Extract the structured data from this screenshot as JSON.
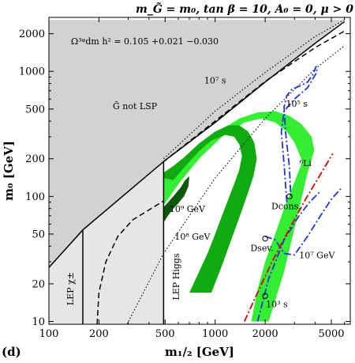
{
  "chart_data": {
    "type": "area",
    "title": "m_G̃ = m₀, tan β = 10, A₀ = 0, μ > 0",
    "panel_label": "(d)",
    "xlabel": "m₁/₂ [GeV]",
    "ylabel": "m₀ [GeV]",
    "xscale": "log",
    "yscale": "log",
    "xlim": [
      100,
      6500
    ],
    "ylim": [
      9.5,
      2700
    ],
    "x_ticks": [
      {
        "value": 100,
        "label": "100"
      },
      {
        "value": 200,
        "label": "200"
      },
      {
        "value": 500,
        "label": "500"
      },
      {
        "value": 1000,
        "label": "1000"
      },
      {
        "value": 2000,
        "label": "2000"
      },
      {
        "value": 5000,
        "label": "5000"
      }
    ],
    "y_ticks": [
      {
        "value": 10,
        "label": "10"
      },
      {
        "value": 20,
        "label": "20"
      },
      {
        "value": 50,
        "label": "50"
      },
      {
        "value": 100,
        "label": "100"
      },
      {
        "value": 200,
        "label": "200"
      },
      {
        "value": 500,
        "label": "500"
      },
      {
        "value": 1000,
        "label": "1000"
      },
      {
        "value": 2000,
        "label": "2000"
      }
    ],
    "grid": false,
    "relic_density_label": "Ω³ᵠdm h² = 0.105 +0.021 −0.030",
    "relic_density": {
      "value": 0.105,
      "plus": 0.021,
      "minus": 0.03
    },
    "colors": {
      "excluded_gray": "#d2d2d2",
      "lep_gray": "#e6e6e6",
      "band_light_green": "#33ee33",
      "band_dark_green": "#11aa11",
      "band_darkest_green": "#0a5a0a",
      "li6_line": "#dd0000",
      "bbn_line": "#2233dd"
    },
    "regions": [
      {
        "name": "G̃ not LSP",
        "label": "G̃ not LSP",
        "points": [
          [
            100,
            27
          ],
          [
            160,
            54
          ],
          [
            490,
            190
          ],
          [
            6000,
            2580
          ],
          [
            100,
            2580
          ]
        ]
      },
      {
        "name": "LEP chargino",
        "label": "LEP χ±",
        "points": [
          [
            100,
            9.5
          ],
          [
            160,
            9.5
          ],
          [
            160,
            54
          ],
          [
            100,
            27
          ]
        ]
      },
      {
        "name": "LEP Higgs",
        "label": "LEP Higgs",
        "points": [
          [
            160,
            9.5
          ],
          [
            490,
            9.5
          ],
          [
            490,
            190
          ],
          [
            160,
            54
          ]
        ]
      }
    ],
    "bands": [
      {
        "name": "light green outer band",
        "fill": "band_light_green",
        "points": [
          [
            490,
            85
          ],
          [
            600,
            125
          ],
          [
            800,
            200
          ],
          [
            1100,
            300
          ],
          [
            1500,
            390
          ],
          [
            1900,
            420
          ],
          [
            2300,
            390
          ],
          [
            2700,
            330
          ],
          [
            3000,
            270
          ],
          [
            3200,
            220
          ],
          [
            3350,
            190
          ],
          [
            3000,
            130
          ],
          [
            2600,
            80
          ],
          [
            2300,
            50
          ],
          [
            2000,
            30
          ],
          [
            1800,
            18
          ],
          [
            1650,
            10
          ],
          [
            2100,
            10
          ],
          [
            2600,
            25
          ],
          [
            3000,
            55
          ],
          [
            3300,
            95
          ],
          [
            3600,
            155
          ],
          [
            3950,
            235
          ],
          [
            3800,
            300
          ],
          [
            3300,
            380
          ],
          [
            2800,
            440
          ],
          [
            2300,
            480
          ],
          [
            1800,
            470
          ],
          [
            1400,
            420
          ],
          [
            1050,
            330
          ],
          [
            800,
            240
          ],
          [
            600,
            170
          ],
          [
            490,
            140
          ]
        ]
      },
      {
        "name": "green inner band",
        "fill": "band_dark_green",
        "points": [
          [
            490,
            140
          ],
          [
            560,
            135
          ],
          [
            650,
            170
          ],
          [
            800,
            230
          ],
          [
            950,
            280
          ],
          [
            1150,
            310
          ],
          [
            1300,
            300
          ],
          [
            1400,
            260
          ],
          [
            1450,
            210
          ],
          [
            1400,
            165
          ],
          [
            1300,
            125
          ],
          [
            1200,
            95
          ],
          [
            1100,
            70
          ],
          [
            1000,
            50
          ],
          [
            900,
            35
          ],
          [
            800,
            25
          ],
          [
            700,
            17
          ],
          [
            950,
            17
          ],
          [
            1100,
            28
          ],
          [
            1250,
            45
          ],
          [
            1400,
            68
          ],
          [
            1550,
            100
          ],
          [
            1700,
            145
          ],
          [
            1780,
            200
          ],
          [
            1720,
            270
          ],
          [
            1580,
            330
          ],
          [
            1400,
            370
          ],
          [
            1200,
            370
          ],
          [
            1000,
            330
          ],
          [
            800,
            265
          ],
          [
            650,
            205
          ],
          [
            560,
            175
          ],
          [
            490,
            155
          ]
        ]
      },
      {
        "name": "darkest green band",
        "fill": "band_darkest_green",
        "points": [
          [
            490,
            82
          ],
          [
            560,
            100
          ],
          [
            620,
            118
          ],
          [
            660,
            135
          ],
          [
            700,
            145
          ],
          [
            690,
            120
          ],
          [
            650,
            100
          ],
          [
            600,
            88
          ],
          [
            560,
            80
          ],
          [
            520,
            70
          ],
          [
            490,
            62
          ]
        ]
      }
    ],
    "series": [
      {
        "name": "LEP χ± bound",
        "style": "solid",
        "points": [
          [
            160,
            9.5
          ],
          [
            160,
            54
          ]
        ]
      },
      {
        "name": "LEP Higgs bound",
        "style": "solid",
        "points": [
          [
            490,
            9.5
          ],
          [
            490,
            190
          ]
        ]
      },
      {
        "name": "",
        "style": "dashed",
        "color": "#000000",
        "points": [
          [
            195,
            9.5
          ],
          [
            200,
            17
          ],
          [
            220,
            30
          ],
          [
            260,
            48
          ],
          [
            320,
            65
          ],
          [
            400,
            78
          ],
          [
            490,
            92
          ]
        ]
      },
      {
        "name": "",
        "style": "dashed",
        "color": "#000000",
        "points": [
          [
            490,
            190
          ],
          [
            1000,
            400
          ],
          [
            2000,
            830
          ],
          [
            4000,
            1550
          ],
          [
            6000,
            2100
          ]
        ]
      },
      {
        "name": "10⁷ s",
        "style": "dotted",
        "color": "#000000",
        "points": [
          [
            490,
            200
          ],
          [
            1000,
            480
          ],
          [
            2000,
            980
          ],
          [
            4000,
            1900
          ],
          [
            6000,
            2580
          ]
        ]
      },
      {
        "name": "",
        "style": "dotted",
        "color": "#000000",
        "points": [
          [
            295,
            9.5
          ],
          [
            490,
            35
          ],
          [
            1000,
            140
          ],
          [
            2000,
            420
          ],
          [
            4000,
            1050
          ],
          [
            6000,
            1600
          ]
        ]
      },
      {
        "name": "10⁵ s",
        "style": "dashdot",
        "color": "#2233dd",
        "points": [
          [
            2700,
            90
          ],
          [
            2600,
            180
          ],
          [
            2500,
            330
          ],
          [
            2600,
            480
          ],
          [
            3000,
            600
          ],
          [
            3600,
            740
          ],
          [
            4100,
            990
          ],
          [
            4050,
            1100
          ],
          [
            3900,
            960
          ],
          [
            3600,
            820
          ],
          [
            3200,
            760
          ],
          [
            2900,
            720
          ],
          [
            2700,
            640
          ],
          [
            2600,
            520
          ],
          [
            2650,
            330
          ],
          [
            2800,
            170
          ],
          [
            2850,
            100
          ]
        ]
      },
      {
        "name": "D cons.",
        "style": "dashdot",
        "color": "#2233dd",
        "points": [
          [
            2000,
            48
          ],
          [
            2300,
            45
          ],
          [
            2600,
            35
          ],
          [
            3000,
            34
          ],
          [
            3600,
            48
          ],
          [
            4300,
            70
          ],
          [
            5000,
            95
          ],
          [
            5700,
            115
          ]
        ]
      },
      {
        "name": "D sev.",
        "style": "dashdot",
        "color": "#2233dd",
        "points": [
          [
            1800,
            10
          ],
          [
            2100,
            22
          ],
          [
            2600,
            45
          ],
          [
            3200,
            70
          ],
          [
            3700,
            90
          ],
          [
            4300,
            110
          ]
        ]
      },
      {
        "name": "⁶Li",
        "style": "dashdot",
        "color": "#dd0000",
        "points": [
          [
            1500,
            10
          ],
          [
            1800,
            17
          ],
          [
            2200,
            30
          ],
          [
            2800,
            55
          ],
          [
            3500,
            95
          ],
          [
            4300,
            150
          ],
          [
            5100,
            220
          ]
        ]
      },
      {
        "name": "",
        "style": "solid",
        "color": "#000000",
        "points": [
          [
            100,
            27
          ],
          [
            160,
            54
          ],
          [
            490,
            190
          ],
          [
            1000,
            390
          ],
          [
            2000,
            820
          ],
          [
            4000,
            1680
          ],
          [
            6000,
            2500
          ]
        ]
      }
    ],
    "markers": [
      {
        "name": "D cons. point",
        "label": "Dcons.",
        "x": 2800,
        "y": 100
      },
      {
        "name": "D sev. point",
        "label": "Dsev.",
        "x": 2000,
        "y": 46
      },
      {
        "name": "10³ s point",
        "label": "10³ s",
        "x": 2000,
        "y": 16
      }
    ],
    "annotations": [
      {
        "label": "10⁹ GeV",
        "x": 680,
        "y": 75
      },
      {
        "label": "10⁸ GeV",
        "x": 730,
        "y": 45
      },
      {
        "label": "10⁷ GeV",
        "x": 4100,
        "y": 32
      },
      {
        "label": "10⁷ s",
        "x": 1000,
        "y": 800
      },
      {
        "label": "10⁵ s",
        "x": 3100,
        "y": 520
      },
      {
        "label": "⁶Li",
        "x": 3500,
        "y": 175
      },
      {
        "label": "10³ s",
        "x": 2350,
        "y": 13
      }
    ]
  }
}
